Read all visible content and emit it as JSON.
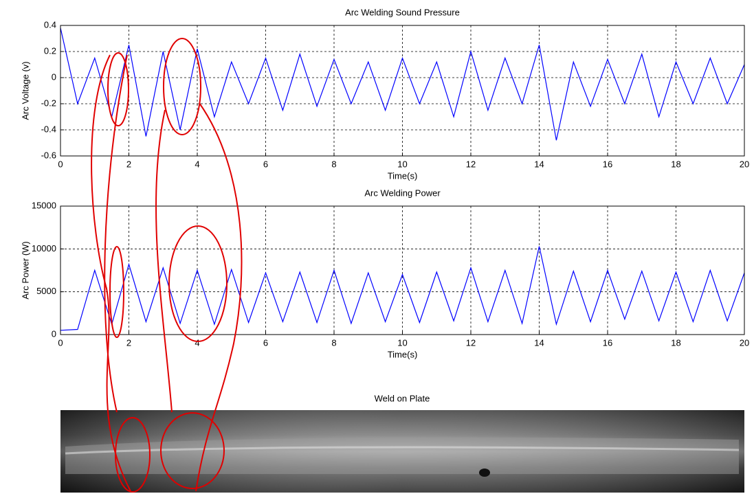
{
  "chart_data": [
    {
      "type": "line",
      "title": "Arc Welding Sound Pressure",
      "x_label": "Time(s)",
      "y_label": "Arc Voltage (v)",
      "color": "#0000ff",
      "grid": true,
      "xlim": [
        0,
        20
      ],
      "xticks": [
        0,
        2,
        4,
        6,
        8,
        10,
        12,
        14,
        16,
        18,
        20
      ],
      "ylim": [
        -0.6,
        0.4
      ],
      "yticks": [
        -0.6,
        -0.4,
        -0.2,
        0,
        0.2,
        0.4
      ],
      "x": [
        0,
        0.5,
        1,
        1.5,
        2,
        2.5,
        3,
        3.5,
        4,
        4.5,
        5,
        5.5,
        6,
        6.5,
        7,
        7.5,
        8,
        8.5,
        9,
        9.5,
        10,
        10.5,
        11,
        11.5,
        12,
        12.5,
        13,
        13.5,
        14,
        14.5,
        15,
        15.5,
        16,
        16.5,
        17,
        17.5,
        18,
        18.5,
        19,
        19.5,
        20
      ],
      "values": [
        0.38,
        -0.2,
        0.15,
        -0.3,
        0.25,
        -0.45,
        0.2,
        -0.4,
        0.22,
        -0.3,
        0.12,
        -0.2,
        0.15,
        -0.25,
        0.18,
        -0.22,
        0.14,
        -0.2,
        0.12,
        -0.25,
        0.15,
        -0.2,
        0.12,
        -0.3,
        0.2,
        -0.25,
        0.15,
        -0.2,
        0.25,
        -0.48,
        0.12,
        -0.22,
        0.14,
        -0.2,
        0.18,
        -0.3,
        0.12,
        -0.2,
        0.15,
        -0.2,
        0.1
      ]
    },
    {
      "type": "line",
      "title": "Arc Welding Power",
      "x_label": "Time(s)",
      "y_label": "Arc Power (W)",
      "color": "#0000ff",
      "grid": true,
      "xlim": [
        0,
        20
      ],
      "xticks": [
        0,
        2,
        4,
        6,
        8,
        10,
        12,
        14,
        16,
        18,
        20
      ],
      "ylim": [
        0,
        15000
      ],
      "yticks": [
        0,
        5000,
        10000,
        15000
      ],
      "x": [
        0,
        0.5,
        1,
        1.5,
        2,
        2.5,
        3,
        3.5,
        4,
        4.5,
        5,
        5.5,
        6,
        6.5,
        7,
        7.5,
        8,
        8.5,
        9,
        9.5,
        10,
        10.5,
        11,
        11.5,
        12,
        12.5,
        13,
        13.5,
        14,
        14.5,
        15,
        15.5,
        16,
        16.5,
        17,
        17.5,
        18,
        18.5,
        19,
        19.5,
        20
      ],
      "values": [
        500,
        600,
        7500,
        1200,
        8200,
        1500,
        7800,
        1300,
        7500,
        1200,
        7600,
        1400,
        7200,
        1500,
        7300,
        1400,
        7500,
        1300,
        7200,
        1500,
        7000,
        1400,
        7300,
        1600,
        7800,
        1500,
        7500,
        1300,
        10300,
        1200,
        7400,
        1500,
        7500,
        1800,
        7400,
        1600,
        7300,
        1500,
        7500,
        1600,
        7200
      ]
    }
  ],
  "image": {
    "title": "Weld on Plate"
  }
}
